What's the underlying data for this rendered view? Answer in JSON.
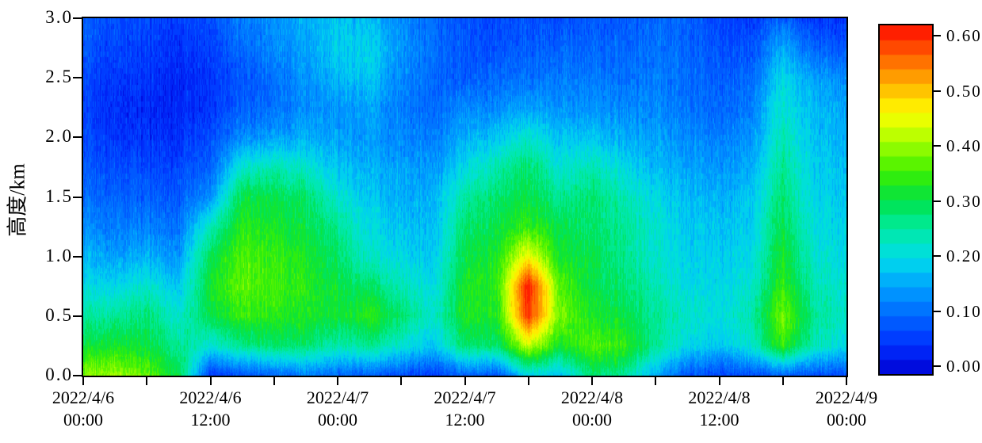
{
  "figure": {
    "background": "#ffffff",
    "y_axis": {
      "title": "高度/km",
      "min_km": 0.0,
      "max_km": 3.0,
      "tick_values": [
        0.0,
        0.5,
        1.0,
        1.5,
        2.0,
        2.5,
        3.0
      ],
      "tick_labels": [
        "0.0",
        "0.5",
        "1.0",
        "1.5",
        "2.0",
        "2.5",
        "3.0"
      ]
    },
    "x_axis": {
      "minor_tick_hours": 6,
      "label_step_hours": 12,
      "start": "2022/4/6 00:00",
      "end": "2022/4/9 00:00",
      "labels": [
        {
          "date": "2022/4/6",
          "time": "00:00"
        },
        {
          "date": "2022/4/6",
          "time": "12:00"
        },
        {
          "date": "2022/4/7",
          "time": "00:00"
        },
        {
          "date": "2022/4/7",
          "time": "12:00"
        },
        {
          "date": "2022/4/8",
          "time": "00:00"
        },
        {
          "date": "2022/4/8",
          "time": "12:00"
        },
        {
          "date": "2022/4/9",
          "time": "00:00"
        }
      ]
    },
    "colorbar": {
      "min": 0.0,
      "max": 0.6,
      "levels": 24,
      "tick_values": [
        0.0,
        0.1,
        0.2,
        0.3,
        0.4,
        0.5,
        0.6
      ],
      "tick_labels": [
        "0.000",
        "0.1000",
        "0.2000",
        "0.3000",
        "0.4000",
        "0.5000",
        "0.6000"
      ]
    }
  },
  "chart_data": {
    "type": "heatmap",
    "title": "",
    "x_unit": "hours since 2022/4/6 00:00",
    "y_unit": "km",
    "value_range": [
      0.0,
      0.6
    ],
    "x_hours": [
      0,
      3,
      6,
      9,
      12,
      15,
      18,
      21,
      24,
      27,
      30,
      33,
      36,
      39,
      42,
      45,
      48,
      51,
      54,
      57,
      60,
      63,
      66,
      69,
      72
    ],
    "y_km": [
      0.0,
      0.25,
      0.5,
      0.75,
      1.0,
      1.25,
      1.5,
      1.75,
      2.0,
      2.25,
      2.5,
      2.75,
      3.0
    ],
    "values": [
      [
        0.38,
        0.4,
        0.36,
        0.3,
        0.06,
        0.08,
        0.1,
        0.12,
        0.1,
        0.09,
        0.08,
        0.06,
        0.1,
        0.08,
        0.2,
        0.18,
        0.28,
        0.26,
        0.16,
        0.08,
        0.07,
        0.08,
        0.1,
        0.08,
        0.07
      ],
      [
        0.3,
        0.32,
        0.3,
        0.26,
        0.22,
        0.26,
        0.28,
        0.28,
        0.24,
        0.26,
        0.22,
        0.18,
        0.28,
        0.28,
        0.42,
        0.32,
        0.36,
        0.34,
        0.26,
        0.2,
        0.18,
        0.22,
        0.34,
        0.24,
        0.2
      ],
      [
        0.24,
        0.26,
        0.27,
        0.22,
        0.3,
        0.34,
        0.33,
        0.32,
        0.31,
        0.33,
        0.28,
        0.22,
        0.32,
        0.32,
        0.58,
        0.38,
        0.32,
        0.3,
        0.26,
        0.22,
        0.21,
        0.24,
        0.38,
        0.26,
        0.22
      ],
      [
        0.2,
        0.2,
        0.22,
        0.18,
        0.32,
        0.36,
        0.35,
        0.33,
        0.3,
        0.28,
        0.24,
        0.2,
        0.32,
        0.33,
        0.6,
        0.36,
        0.3,
        0.28,
        0.24,
        0.2,
        0.2,
        0.22,
        0.34,
        0.24,
        0.21
      ],
      [
        0.16,
        0.15,
        0.16,
        0.14,
        0.3,
        0.35,
        0.34,
        0.32,
        0.28,
        0.22,
        0.2,
        0.18,
        0.3,
        0.32,
        0.45,
        0.32,
        0.3,
        0.26,
        0.22,
        0.19,
        0.19,
        0.2,
        0.32,
        0.22,
        0.2
      ],
      [
        0.13,
        0.12,
        0.12,
        0.11,
        0.24,
        0.33,
        0.32,
        0.3,
        0.26,
        0.2,
        0.18,
        0.17,
        0.28,
        0.3,
        0.34,
        0.3,
        0.28,
        0.26,
        0.22,
        0.18,
        0.18,
        0.19,
        0.3,
        0.21,
        0.19
      ],
      [
        0.1,
        0.1,
        0.09,
        0.09,
        0.14,
        0.3,
        0.3,
        0.28,
        0.22,
        0.18,
        0.16,
        0.16,
        0.25,
        0.28,
        0.3,
        0.26,
        0.28,
        0.24,
        0.2,
        0.17,
        0.16,
        0.18,
        0.28,
        0.2,
        0.18
      ],
      [
        0.08,
        0.08,
        0.07,
        0.07,
        0.1,
        0.22,
        0.24,
        0.22,
        0.18,
        0.16,
        0.15,
        0.14,
        0.2,
        0.24,
        0.28,
        0.22,
        0.24,
        0.2,
        0.17,
        0.15,
        0.14,
        0.16,
        0.26,
        0.19,
        0.17
      ],
      [
        0.07,
        0.06,
        0.05,
        0.05,
        0.08,
        0.13,
        0.15,
        0.16,
        0.15,
        0.14,
        0.13,
        0.12,
        0.16,
        0.18,
        0.22,
        0.18,
        0.18,
        0.16,
        0.15,
        0.13,
        0.12,
        0.14,
        0.24,
        0.18,
        0.16
      ],
      [
        0.06,
        0.05,
        0.04,
        0.04,
        0.06,
        0.09,
        0.11,
        0.13,
        0.14,
        0.15,
        0.12,
        0.1,
        0.13,
        0.13,
        0.15,
        0.14,
        0.14,
        0.13,
        0.13,
        0.11,
        0.1,
        0.12,
        0.22,
        0.17,
        0.15
      ],
      [
        0.07,
        0.06,
        0.05,
        0.04,
        0.06,
        0.08,
        0.11,
        0.14,
        0.17,
        0.18,
        0.13,
        0.1,
        0.09,
        0.1,
        0.11,
        0.12,
        0.12,
        0.11,
        0.12,
        0.1,
        0.09,
        0.1,
        0.2,
        0.15,
        0.13
      ],
      [
        0.08,
        0.07,
        0.06,
        0.05,
        0.07,
        0.1,
        0.13,
        0.15,
        0.19,
        0.19,
        0.14,
        0.11,
        0.08,
        0.08,
        0.09,
        0.1,
        0.1,
        0.1,
        0.11,
        0.1,
        0.08,
        0.08,
        0.16,
        0.1,
        0.08
      ],
      [
        0.09,
        0.08,
        0.07,
        0.06,
        0.08,
        0.12,
        0.14,
        0.16,
        0.18,
        0.17,
        0.13,
        0.1,
        0.08,
        0.07,
        0.08,
        0.08,
        0.09,
        0.09,
        0.1,
        0.09,
        0.07,
        0.06,
        0.1,
        0.06,
        0.05
      ]
    ],
    "colormap_stops": [
      [
        0.0,
        [
          0,
          0,
          210
        ]
      ],
      [
        0.08,
        [
          0,
          45,
          255
        ]
      ],
      [
        0.17,
        [
          0,
          105,
          255
        ]
      ],
      [
        0.25,
        [
          0,
          160,
          255
        ]
      ],
      [
        0.33,
        [
          0,
          220,
          235
        ]
      ],
      [
        0.42,
        [
          0,
          235,
          160
        ]
      ],
      [
        0.5,
        [
          0,
          225,
          70
        ]
      ],
      [
        0.58,
        [
          60,
          240,
          0
        ]
      ],
      [
        0.67,
        [
          170,
          255,
          0
        ]
      ],
      [
        0.75,
        [
          255,
          255,
          0
        ]
      ],
      [
        0.83,
        [
          255,
          180,
          0
        ]
      ],
      [
        0.92,
        [
          255,
          90,
          0
        ]
      ],
      [
        1.0,
        [
          255,
          10,
          0
        ]
      ]
    ]
  }
}
